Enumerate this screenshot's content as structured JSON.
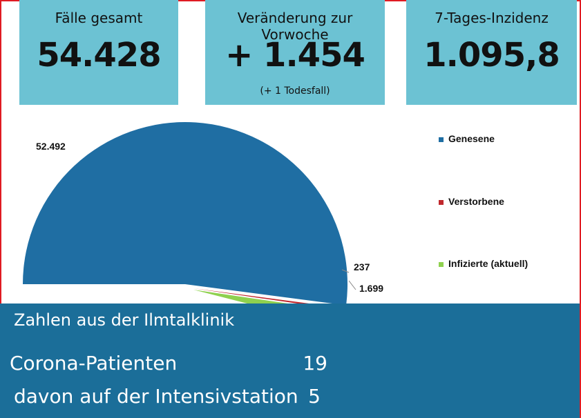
{
  "cards": {
    "total": {
      "label": "Fälle gesamt",
      "value": "54.428"
    },
    "change": {
      "label": "Veränderung zur Vorwoche",
      "value": "+ 1.454",
      "note": "(+ 1 Todesfall)"
    },
    "incidence": {
      "label": "7-Tages-Inzidenz",
      "value": "1.095,8"
    }
  },
  "chart_data": {
    "type": "pie",
    "labels": [
      "Genesene",
      "Verstorbene",
      "Infizierte (aktuell)"
    ],
    "values": [
      52492,
      237,
      1699
    ],
    "value_labels": [
      "52.492",
      "237",
      "1.699"
    ],
    "colors": [
      "#1f6ea3",
      "#c0282d",
      "#8fd14f"
    ],
    "legend_position": "right",
    "title": ""
  },
  "clinic": {
    "title": "Zahlen aus der Ilmtalklinik",
    "rows": [
      {
        "label": "Corona-Patienten",
        "value": "19"
      },
      {
        "label": "davon auf der Intensivstation",
        "value": "5"
      }
    ]
  }
}
